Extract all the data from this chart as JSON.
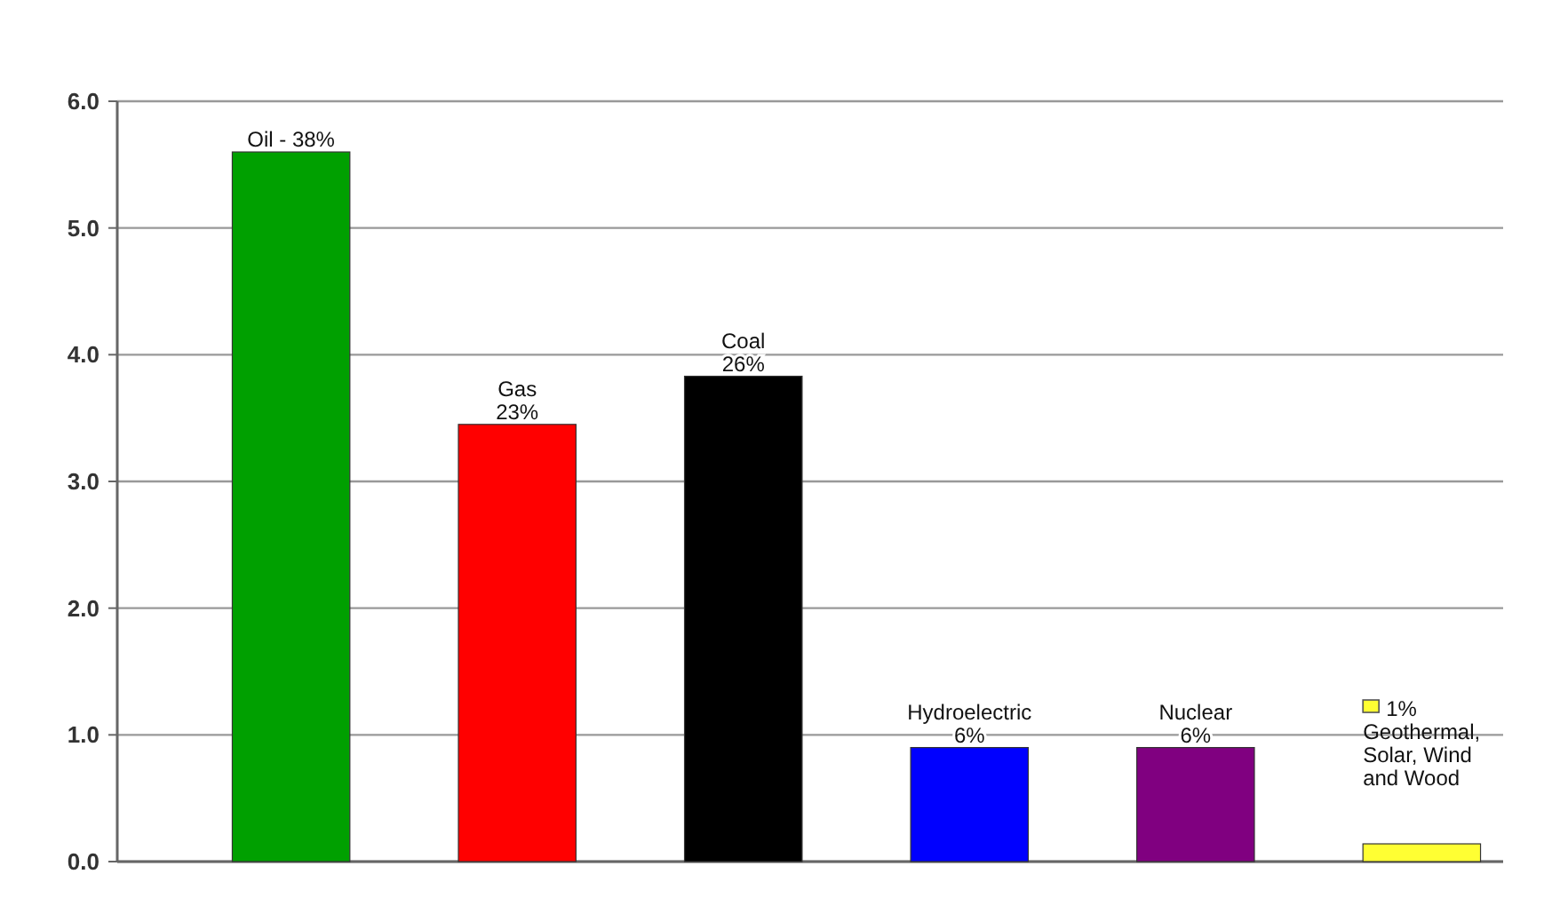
{
  "chart_data": {
    "type": "bar",
    "categories": [
      null,
      null,
      null,
      null,
      null,
      null
    ],
    "values": [
      5.6,
      3.45,
      3.83,
      0.9,
      0.9,
      0.14
    ],
    "colors": [
      "#00a000",
      "#ff0000",
      "#000000",
      "#0000ff",
      "#800080",
      "#ffff33"
    ],
    "annotations": [
      {
        "text": "Oil - 38%",
        "y": 5.6
      },
      {
        "text": "Gas\n23%",
        "y": 3.45
      },
      {
        "text": "Coal\n26%",
        "y": 3.83
      },
      {
        "text": "Hydroelectric\n6%",
        "y": 0.9
      },
      {
        "text": "Nuclear\n6%",
        "y": 0.9
      },
      {
        "text": "1%\nGeothermal,\nSolar, Wind\nand Wood",
        "y": 0.14
      }
    ],
    "ylim": [
      0,
      6
    ],
    "yticks": [
      {
        "value": 0,
        "label": "0.0"
      },
      {
        "value": 1,
        "label": "1.0"
      },
      {
        "value": 2,
        "label": "2.0"
      },
      {
        "value": 3,
        "label": "3.0"
      },
      {
        "value": 4,
        "label": "4.0"
      },
      {
        "value": 5,
        "label": "5.0"
      },
      {
        "value": 6,
        "label": "6.0"
      }
    ],
    "grid": "y",
    "tick_labels": "y"
  }
}
